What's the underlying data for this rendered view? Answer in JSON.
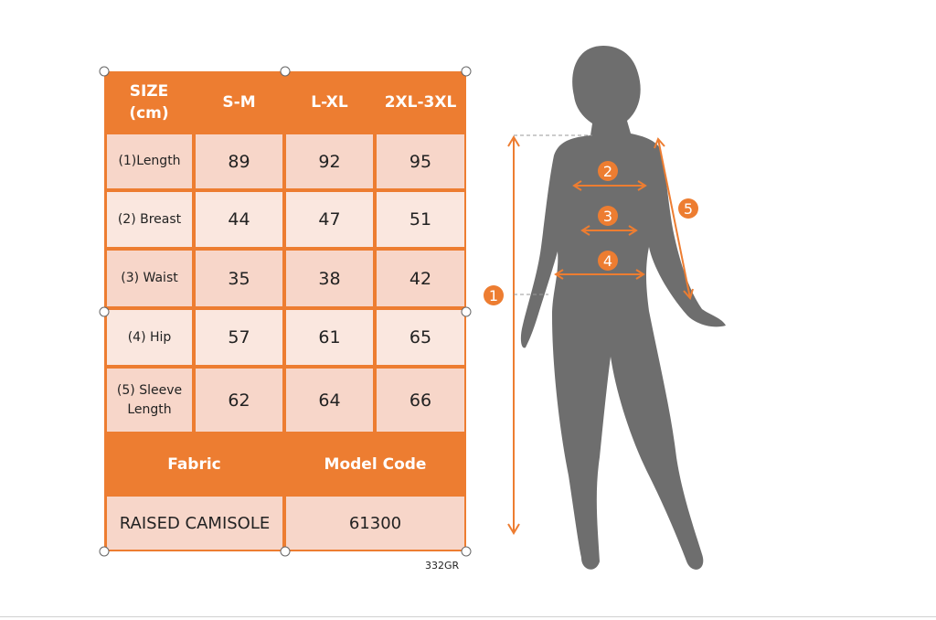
{
  "size_chart": {
    "header": [
      "SIZE\n(cm)",
      "S-M",
      "L-XL",
      "2XL-3XL"
    ],
    "header_size": "SIZE",
    "header_unit": "(cm)",
    "rows": [
      {
        "label": "(1)Length",
        "values": [
          "89",
          "92",
          "95"
        ]
      },
      {
        "label": "(2) Breast",
        "values": [
          "44",
          "47",
          "51"
        ]
      },
      {
        "label": "(3) Waist",
        "values": [
          "35",
          "38",
          "42"
        ]
      },
      {
        "label": "(4) Hip",
        "values": [
          "57",
          "61",
          "65"
        ]
      },
      {
        "label_line1": "(5) Sleeve",
        "label_line2": "Length",
        "values": [
          "62",
          "64",
          "66"
        ]
      }
    ],
    "fabric_label": "Fabric",
    "model_code_label": "Model Code",
    "fabric_value": "RAISED CAMISOLE",
    "model_code_value": "61300"
  },
  "figure": {
    "markers": [
      "1",
      "2",
      "3",
      "4",
      "5"
    ]
  },
  "image_code": "332GR",
  "colors": {
    "accent": "#ED7D31",
    "silhouette": "#6E6E6E"
  }
}
